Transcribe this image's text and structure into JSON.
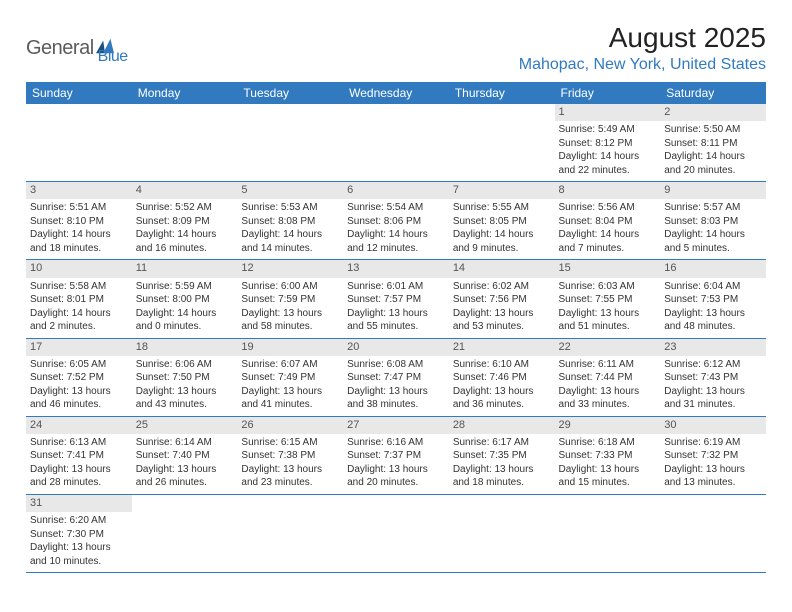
{
  "logo": {
    "text1": "General",
    "text2": "Blue"
  },
  "title": "August 2025",
  "location": "Mahopac, New York, United States",
  "colors": {
    "accent": "#317ac0",
    "header_text": "#5b5b5b",
    "daynum_bg": "#e8e8e8",
    "daynum_text": "#555555",
    "body_text": "#333333"
  },
  "day_headers": [
    "Sunday",
    "Monday",
    "Tuesday",
    "Wednesday",
    "Thursday",
    "Friday",
    "Saturday"
  ],
  "weeks": [
    [
      null,
      null,
      null,
      null,
      null,
      {
        "n": "1",
        "sr": "5:49 AM",
        "ss": "8:12 PM",
        "dl": "14 hours and 22 minutes."
      },
      {
        "n": "2",
        "sr": "5:50 AM",
        "ss": "8:11 PM",
        "dl": "14 hours and 20 minutes."
      }
    ],
    [
      {
        "n": "3",
        "sr": "5:51 AM",
        "ss": "8:10 PM",
        "dl": "14 hours and 18 minutes."
      },
      {
        "n": "4",
        "sr": "5:52 AM",
        "ss": "8:09 PM",
        "dl": "14 hours and 16 minutes."
      },
      {
        "n": "5",
        "sr": "5:53 AM",
        "ss": "8:08 PM",
        "dl": "14 hours and 14 minutes."
      },
      {
        "n": "6",
        "sr": "5:54 AM",
        "ss": "8:06 PM",
        "dl": "14 hours and 12 minutes."
      },
      {
        "n": "7",
        "sr": "5:55 AM",
        "ss": "8:05 PM",
        "dl": "14 hours and 9 minutes."
      },
      {
        "n": "8",
        "sr": "5:56 AM",
        "ss": "8:04 PM",
        "dl": "14 hours and 7 minutes."
      },
      {
        "n": "9",
        "sr": "5:57 AM",
        "ss": "8:03 PM",
        "dl": "14 hours and 5 minutes."
      }
    ],
    [
      {
        "n": "10",
        "sr": "5:58 AM",
        "ss": "8:01 PM",
        "dl": "14 hours and 2 minutes."
      },
      {
        "n": "11",
        "sr": "5:59 AM",
        "ss": "8:00 PM",
        "dl": "14 hours and 0 minutes."
      },
      {
        "n": "12",
        "sr": "6:00 AM",
        "ss": "7:59 PM",
        "dl": "13 hours and 58 minutes."
      },
      {
        "n": "13",
        "sr": "6:01 AM",
        "ss": "7:57 PM",
        "dl": "13 hours and 55 minutes."
      },
      {
        "n": "14",
        "sr": "6:02 AM",
        "ss": "7:56 PM",
        "dl": "13 hours and 53 minutes."
      },
      {
        "n": "15",
        "sr": "6:03 AM",
        "ss": "7:55 PM",
        "dl": "13 hours and 51 minutes."
      },
      {
        "n": "16",
        "sr": "6:04 AM",
        "ss": "7:53 PM",
        "dl": "13 hours and 48 minutes."
      }
    ],
    [
      {
        "n": "17",
        "sr": "6:05 AM",
        "ss": "7:52 PM",
        "dl": "13 hours and 46 minutes."
      },
      {
        "n": "18",
        "sr": "6:06 AM",
        "ss": "7:50 PM",
        "dl": "13 hours and 43 minutes."
      },
      {
        "n": "19",
        "sr": "6:07 AM",
        "ss": "7:49 PM",
        "dl": "13 hours and 41 minutes."
      },
      {
        "n": "20",
        "sr": "6:08 AM",
        "ss": "7:47 PM",
        "dl": "13 hours and 38 minutes."
      },
      {
        "n": "21",
        "sr": "6:10 AM",
        "ss": "7:46 PM",
        "dl": "13 hours and 36 minutes."
      },
      {
        "n": "22",
        "sr": "6:11 AM",
        "ss": "7:44 PM",
        "dl": "13 hours and 33 minutes."
      },
      {
        "n": "23",
        "sr": "6:12 AM",
        "ss": "7:43 PM",
        "dl": "13 hours and 31 minutes."
      }
    ],
    [
      {
        "n": "24",
        "sr": "6:13 AM",
        "ss": "7:41 PM",
        "dl": "13 hours and 28 minutes."
      },
      {
        "n": "25",
        "sr": "6:14 AM",
        "ss": "7:40 PM",
        "dl": "13 hours and 26 minutes."
      },
      {
        "n": "26",
        "sr": "6:15 AM",
        "ss": "7:38 PM",
        "dl": "13 hours and 23 minutes."
      },
      {
        "n": "27",
        "sr": "6:16 AM",
        "ss": "7:37 PM",
        "dl": "13 hours and 20 minutes."
      },
      {
        "n": "28",
        "sr": "6:17 AM",
        "ss": "7:35 PM",
        "dl": "13 hours and 18 minutes."
      },
      {
        "n": "29",
        "sr": "6:18 AM",
        "ss": "7:33 PM",
        "dl": "13 hours and 15 minutes."
      },
      {
        "n": "30",
        "sr": "6:19 AM",
        "ss": "7:32 PM",
        "dl": "13 hours and 13 minutes."
      }
    ],
    [
      {
        "n": "31",
        "sr": "6:20 AM",
        "ss": "7:30 PM",
        "dl": "13 hours and 10 minutes."
      },
      null,
      null,
      null,
      null,
      null,
      null
    ]
  ],
  "labels": {
    "sunrise": "Sunrise:",
    "sunset": "Sunset:",
    "daylight": "Daylight:"
  }
}
